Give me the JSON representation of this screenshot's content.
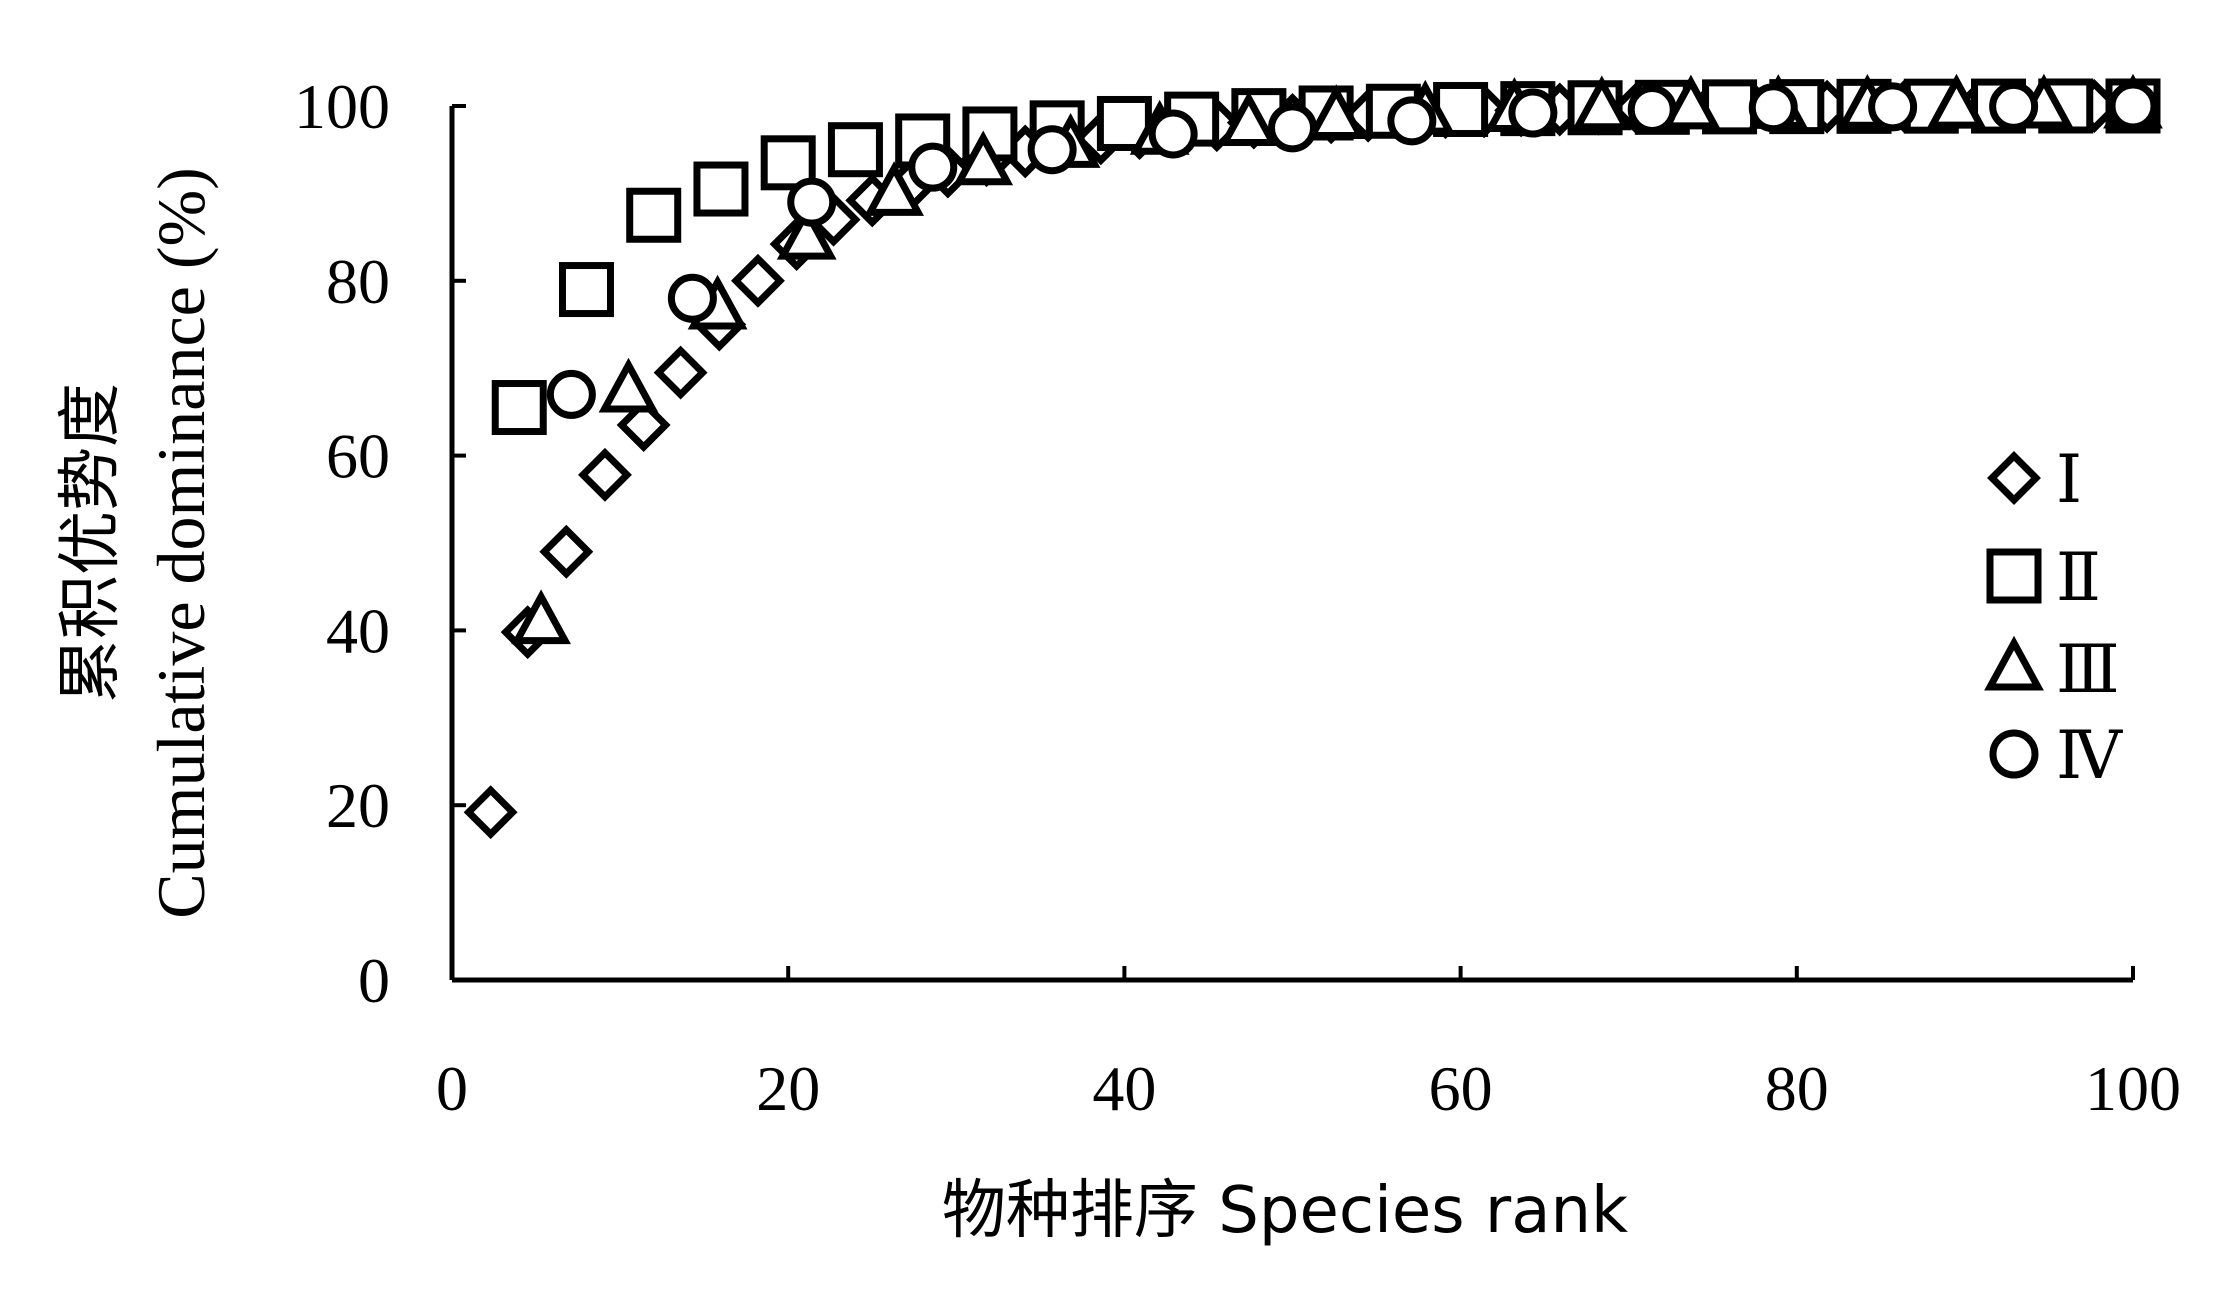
{
  "chart_data": {
    "type": "scatter",
    "title": "",
    "xlabel": "物种排序 Species  rank",
    "ylabel_cn": "累积优势度",
    "ylabel_en": "Cumulative dominance (%)",
    "xlim": [
      0,
      100
    ],
    "ylim": [
      0,
      100
    ],
    "x_ticks": [
      "0",
      "20",
      "40",
      "60",
      "80",
      "100"
    ],
    "y_ticks": [
      "0",
      "20",
      "40",
      "60",
      "80",
      "100"
    ],
    "grid": false,
    "legend_position": "right",
    "series": [
      {
        "name": "Ⅰ",
        "marker": "diamond",
        "points": [
          [
            2.3,
            19.2
          ],
          [
            4.5,
            39.8
          ],
          [
            6.8,
            49.0
          ],
          [
            9.1,
            57.8
          ],
          [
            11.4,
            63.5
          ],
          [
            13.6,
            69.5
          ],
          [
            15.9,
            75.0
          ],
          [
            18.2,
            80.0
          ],
          [
            20.5,
            84.2
          ],
          [
            22.7,
            87.0
          ],
          [
            25.0,
            89.2
          ],
          [
            27.3,
            91.0
          ],
          [
            29.5,
            92.5
          ],
          [
            31.8,
            93.8
          ],
          [
            34.1,
            94.8
          ],
          [
            36.4,
            95.6
          ],
          [
            38.6,
            96.3
          ],
          [
            40.9,
            96.9
          ],
          [
            43.2,
            97.4
          ],
          [
            45.5,
            97.8
          ],
          [
            47.7,
            98.1
          ],
          [
            50.0,
            98.4
          ],
          [
            52.3,
            98.7
          ],
          [
            54.5,
            98.9
          ],
          [
            56.8,
            99.1
          ],
          [
            59.1,
            99.3
          ],
          [
            61.4,
            99.4
          ],
          [
            63.6,
            99.5
          ],
          [
            65.9,
            99.6
          ],
          [
            68.2,
            99.7
          ],
          [
            70.5,
            99.75
          ],
          [
            72.7,
            99.8
          ],
          [
            75.0,
            99.85
          ],
          [
            77.3,
            99.88
          ],
          [
            79.5,
            99.9
          ],
          [
            81.8,
            99.92
          ],
          [
            84.1,
            99.94
          ],
          [
            86.4,
            99.95
          ],
          [
            88.6,
            99.96
          ],
          [
            90.9,
            99.97
          ],
          [
            93.2,
            99.98
          ],
          [
            95.5,
            99.99
          ],
          [
            97.7,
            100
          ],
          [
            100,
            100
          ]
        ]
      },
      {
        "name": "Ⅱ",
        "marker": "square",
        "points": [
          [
            4.0,
            65.5
          ],
          [
            8.0,
            79.0
          ],
          [
            12.0,
            87.5
          ],
          [
            16.0,
            90.5
          ],
          [
            20.0,
            93.5
          ],
          [
            24.0,
            95.0
          ],
          [
            28.0,
            96.0
          ],
          [
            32.0,
            96.8
          ],
          [
            36.0,
            97.5
          ],
          [
            40.0,
            98.0
          ],
          [
            44.0,
            98.5
          ],
          [
            48.0,
            98.9
          ],
          [
            52.0,
            99.2
          ],
          [
            56.0,
            99.4
          ],
          [
            60.0,
            99.6
          ],
          [
            64.0,
            99.7
          ],
          [
            68.0,
            99.8
          ],
          [
            72.0,
            99.85
          ],
          [
            76.0,
            99.9
          ],
          [
            80.0,
            99.93
          ],
          [
            84.0,
            99.96
          ],
          [
            88.0,
            99.98
          ],
          [
            92.0,
            99.99
          ],
          [
            96.0,
            100
          ],
          [
            100,
            100
          ]
        ]
      },
      {
        "name": "Ⅲ",
        "marker": "triangle",
        "points": [
          [
            5.3,
            41.0
          ],
          [
            10.5,
            67.5
          ],
          [
            15.8,
            77.0
          ],
          [
            21.1,
            85.0
          ],
          [
            26.3,
            90.0
          ],
          [
            31.6,
            93.5
          ],
          [
            36.8,
            95.5
          ],
          [
            42.1,
            97.0
          ],
          [
            47.4,
            98.0
          ],
          [
            52.6,
            98.8
          ],
          [
            57.9,
            99.3
          ],
          [
            63.2,
            99.6
          ],
          [
            68.4,
            99.8
          ],
          [
            73.7,
            99.9
          ],
          [
            78.9,
            99.95
          ],
          [
            84.2,
            99.97
          ],
          [
            89.5,
            99.99
          ],
          [
            94.7,
            100
          ],
          [
            100,
            100
          ]
        ]
      },
      {
        "name": "Ⅳ",
        "marker": "circle",
        "points": [
          [
            7.1,
            67.0
          ],
          [
            14.3,
            78.0
          ],
          [
            21.4,
            89.0
          ],
          [
            28.6,
            93.0
          ],
          [
            35.7,
            95.0
          ],
          [
            42.9,
            96.8
          ],
          [
            50.0,
            97.5
          ],
          [
            57.1,
            98.3
          ],
          [
            64.3,
            99.2
          ],
          [
            71.4,
            99.6
          ],
          [
            78.6,
            99.8
          ],
          [
            85.7,
            99.9
          ],
          [
            92.9,
            99.95
          ],
          [
            100,
            100
          ]
        ]
      }
    ]
  }
}
